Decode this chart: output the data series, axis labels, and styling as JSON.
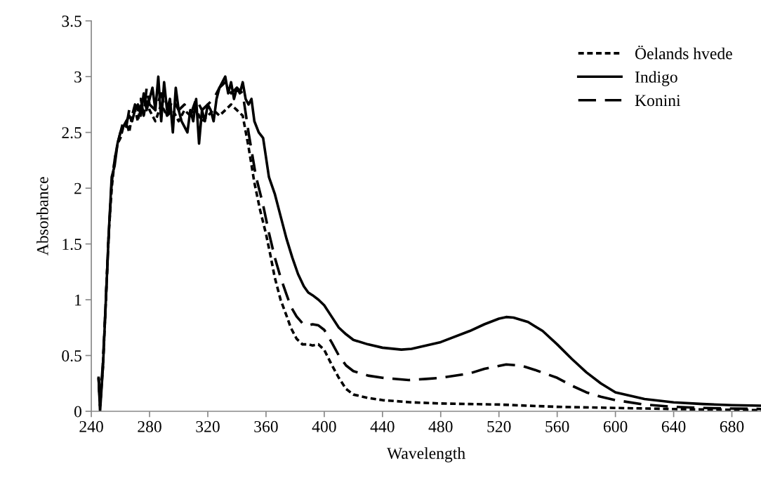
{
  "chart_data": {
    "type": "line",
    "xlabel": "Wavelength",
    "ylabel": "Absorbance",
    "xlim": [
      240,
      700
    ],
    "xticks": [
      240,
      280,
      320,
      360,
      400,
      440,
      480,
      520,
      560,
      600,
      640,
      680
    ],
    "ylim": [
      0,
      3.5
    ],
    "yticks": [
      0,
      0.5,
      1,
      1.5,
      2,
      2.5,
      3,
      3.5
    ],
    "grid": false,
    "legend": "top right",
    "marker": "none",
    "series": [
      {
        "name": "Öelands hvede",
        "color": "#000000",
        "line_style": "dotted",
        "x": [
          245,
          246,
          248,
          250,
          252,
          254,
          256,
          258,
          260,
          262,
          264,
          266,
          268,
          270,
          272,
          274,
          276,
          278,
          280,
          284,
          288,
          292,
          296,
          300,
          304,
          308,
          312,
          316,
          320,
          324,
          328,
          332,
          336,
          340,
          344,
          348,
          352,
          356,
          360,
          363,
          366,
          370,
          374,
          377,
          381,
          385,
          389,
          392,
          396,
          400,
          405,
          410,
          415,
          420,
          430,
          440,
          460,
          480,
          500,
          521,
          540,
          560,
          600,
          640,
          700
        ],
        "values": [
          0.3,
          0.05,
          0.4,
          1.0,
          1.6,
          2.0,
          2.25,
          2.4,
          2.45,
          2.55,
          2.6,
          2.5,
          2.65,
          2.7,
          2.6,
          2.75,
          2.65,
          2.8,
          2.7,
          2.6,
          2.75,
          2.65,
          2.7,
          2.6,
          2.7,
          2.65,
          2.7,
          2.6,
          2.65,
          2.7,
          2.65,
          2.7,
          2.75,
          2.7,
          2.65,
          2.37,
          2.05,
          1.8,
          1.59,
          1.4,
          1.2,
          1.0,
          0.86,
          0.75,
          0.65,
          0.6,
          0.6,
          0.59,
          0.6,
          0.55,
          0.42,
          0.3,
          0.2,
          0.15,
          0.12,
          0.1,
          0.08,
          0.07,
          0.065,
          0.06,
          0.05,
          0.04,
          0.03,
          0.02,
          0.01
        ]
      },
      {
        "name": "Indigo",
        "color": "#000000",
        "line_style": "solid",
        "x": [
          245,
          246,
          248,
          250,
          252,
          254,
          256,
          258,
          260,
          262,
          264,
          266,
          268,
          270,
          272,
          274,
          276,
          278,
          280,
          282,
          284,
          286,
          288,
          290,
          292,
          294,
          296,
          298,
          300,
          302,
          304,
          306,
          308,
          310,
          312,
          314,
          316,
          318,
          320,
          322,
          324,
          326,
          328,
          330,
          332,
          334,
          336,
          338,
          340,
          342,
          344,
          346,
          348,
          350,
          352,
          355,
          358,
          362,
          366,
          370,
          374,
          378,
          382,
          386,
          389,
          392,
          396,
          400,
          405,
          410,
          415,
          420,
          430,
          440,
          453,
          460,
          480,
          500,
          510,
          520,
          525,
          530,
          540,
          550,
          560,
          570,
          580,
          590,
          600,
          620,
          640,
          660,
          680,
          700
        ],
        "values": [
          0.3,
          0.0,
          0.4,
          1.0,
          1.6,
          2.1,
          2.2,
          2.4,
          2.5,
          2.55,
          2.6,
          2.65,
          2.6,
          2.7,
          2.75,
          2.65,
          2.85,
          2.7,
          2.8,
          2.9,
          2.7,
          3.0,
          2.6,
          2.95,
          2.7,
          2.8,
          2.5,
          2.9,
          2.7,
          2.6,
          2.55,
          2.5,
          2.7,
          2.6,
          2.8,
          2.4,
          2.7,
          2.6,
          2.75,
          2.7,
          2.6,
          2.8,
          2.9,
          2.95,
          3.0,
          2.85,
          2.95,
          2.8,
          2.9,
          2.85,
          2.95,
          2.8,
          2.75,
          2.8,
          2.6,
          2.5,
          2.45,
          2.1,
          1.95,
          1.75,
          1.55,
          1.38,
          1.23,
          1.12,
          1.065,
          1.04,
          1.0,
          0.95,
          0.85,
          0.75,
          0.69,
          0.64,
          0.6,
          0.57,
          0.553,
          0.56,
          0.62,
          0.72,
          0.78,
          0.83,
          0.845,
          0.84,
          0.8,
          0.72,
          0.6,
          0.47,
          0.35,
          0.25,
          0.17,
          0.11,
          0.08,
          0.065,
          0.055,
          0.05
        ]
      },
      {
        "name": "Konini",
        "color": "#000000",
        "line_style": "dashed",
        "x": [
          245,
          246,
          248,
          250,
          252,
          254,
          256,
          258,
          260,
          262,
          264,
          266,
          268,
          270,
          272,
          274,
          276,
          278,
          280,
          284,
          288,
          292,
          296,
          300,
          304,
          308,
          312,
          316,
          320,
          324,
          328,
          332,
          336,
          340,
          344,
          348,
          353,
          358,
          362,
          366,
          370,
          374,
          377,
          381,
          385,
          389,
          392,
          396,
          400,
          405,
          410,
          415,
          420,
          430,
          440,
          458,
          470,
          480,
          500,
          510,
          525,
          535,
          545,
          560,
          570,
          580,
          590,
          600,
          620,
          640,
          660,
          700
        ],
        "values": [
          0.3,
          0.05,
          0.45,
          1.0,
          1.6,
          2.05,
          2.25,
          2.4,
          2.5,
          2.6,
          2.55,
          2.7,
          2.65,
          2.75,
          2.7,
          2.8,
          2.65,
          2.9,
          2.75,
          2.7,
          2.85,
          2.65,
          2.8,
          2.7,
          2.75,
          2.65,
          2.8,
          2.7,
          2.75,
          2.8,
          2.9,
          2.95,
          2.85,
          2.9,
          2.85,
          2.5,
          2.11,
          1.85,
          1.6,
          1.38,
          1.2,
          1.05,
          0.94,
          0.85,
          0.79,
          0.77,
          0.78,
          0.77,
          0.73,
          0.62,
          0.5,
          0.41,
          0.36,
          0.32,
          0.3,
          0.28,
          0.29,
          0.3,
          0.34,
          0.38,
          0.42,
          0.41,
          0.37,
          0.3,
          0.23,
          0.17,
          0.13,
          0.1,
          0.06,
          0.04,
          0.03,
          0.02
        ]
      }
    ]
  }
}
